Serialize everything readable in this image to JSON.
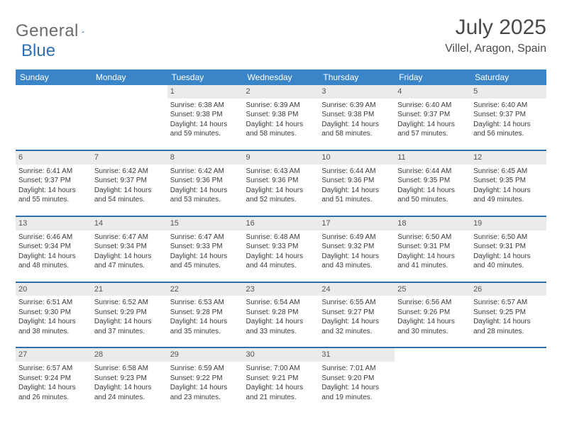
{
  "brand": {
    "name1": "General",
    "name2": "Blue"
  },
  "title": "July 2025",
  "location": "Villel, Aragon, Spain",
  "colors": {
    "header_bg": "#3a85c8",
    "row_border": "#2f6fb0",
    "daynum_bg": "#ebebeb",
    "text": "#3a3a3a"
  },
  "day_headers": [
    "Sunday",
    "Monday",
    "Tuesday",
    "Wednesday",
    "Thursday",
    "Friday",
    "Saturday"
  ],
  "weeks": [
    [
      {
        "empty": true
      },
      {
        "empty": true
      },
      {
        "day": "1",
        "sunrise": "Sunrise: 6:38 AM",
        "sunset": "Sunset: 9:38 PM",
        "daylight": "Daylight: 14 hours and 59 minutes."
      },
      {
        "day": "2",
        "sunrise": "Sunrise: 6:39 AM",
        "sunset": "Sunset: 9:38 PM",
        "daylight": "Daylight: 14 hours and 58 minutes."
      },
      {
        "day": "3",
        "sunrise": "Sunrise: 6:39 AM",
        "sunset": "Sunset: 9:38 PM",
        "daylight": "Daylight: 14 hours and 58 minutes."
      },
      {
        "day": "4",
        "sunrise": "Sunrise: 6:40 AM",
        "sunset": "Sunset: 9:37 PM",
        "daylight": "Daylight: 14 hours and 57 minutes."
      },
      {
        "day": "5",
        "sunrise": "Sunrise: 6:40 AM",
        "sunset": "Sunset: 9:37 PM",
        "daylight": "Daylight: 14 hours and 56 minutes."
      }
    ],
    [
      {
        "day": "6",
        "sunrise": "Sunrise: 6:41 AM",
        "sunset": "Sunset: 9:37 PM",
        "daylight": "Daylight: 14 hours and 55 minutes."
      },
      {
        "day": "7",
        "sunrise": "Sunrise: 6:42 AM",
        "sunset": "Sunset: 9:37 PM",
        "daylight": "Daylight: 14 hours and 54 minutes."
      },
      {
        "day": "8",
        "sunrise": "Sunrise: 6:42 AM",
        "sunset": "Sunset: 9:36 PM",
        "daylight": "Daylight: 14 hours and 53 minutes."
      },
      {
        "day": "9",
        "sunrise": "Sunrise: 6:43 AM",
        "sunset": "Sunset: 9:36 PM",
        "daylight": "Daylight: 14 hours and 52 minutes."
      },
      {
        "day": "10",
        "sunrise": "Sunrise: 6:44 AM",
        "sunset": "Sunset: 9:36 PM",
        "daylight": "Daylight: 14 hours and 51 minutes."
      },
      {
        "day": "11",
        "sunrise": "Sunrise: 6:44 AM",
        "sunset": "Sunset: 9:35 PM",
        "daylight": "Daylight: 14 hours and 50 minutes."
      },
      {
        "day": "12",
        "sunrise": "Sunrise: 6:45 AM",
        "sunset": "Sunset: 9:35 PM",
        "daylight": "Daylight: 14 hours and 49 minutes."
      }
    ],
    [
      {
        "day": "13",
        "sunrise": "Sunrise: 6:46 AM",
        "sunset": "Sunset: 9:34 PM",
        "daylight": "Daylight: 14 hours and 48 minutes."
      },
      {
        "day": "14",
        "sunrise": "Sunrise: 6:47 AM",
        "sunset": "Sunset: 9:34 PM",
        "daylight": "Daylight: 14 hours and 47 minutes."
      },
      {
        "day": "15",
        "sunrise": "Sunrise: 6:47 AM",
        "sunset": "Sunset: 9:33 PM",
        "daylight": "Daylight: 14 hours and 45 minutes."
      },
      {
        "day": "16",
        "sunrise": "Sunrise: 6:48 AM",
        "sunset": "Sunset: 9:33 PM",
        "daylight": "Daylight: 14 hours and 44 minutes."
      },
      {
        "day": "17",
        "sunrise": "Sunrise: 6:49 AM",
        "sunset": "Sunset: 9:32 PM",
        "daylight": "Daylight: 14 hours and 43 minutes."
      },
      {
        "day": "18",
        "sunrise": "Sunrise: 6:50 AM",
        "sunset": "Sunset: 9:31 PM",
        "daylight": "Daylight: 14 hours and 41 minutes."
      },
      {
        "day": "19",
        "sunrise": "Sunrise: 6:50 AM",
        "sunset": "Sunset: 9:31 PM",
        "daylight": "Daylight: 14 hours and 40 minutes."
      }
    ],
    [
      {
        "day": "20",
        "sunrise": "Sunrise: 6:51 AM",
        "sunset": "Sunset: 9:30 PM",
        "daylight": "Daylight: 14 hours and 38 minutes."
      },
      {
        "day": "21",
        "sunrise": "Sunrise: 6:52 AM",
        "sunset": "Sunset: 9:29 PM",
        "daylight": "Daylight: 14 hours and 37 minutes."
      },
      {
        "day": "22",
        "sunrise": "Sunrise: 6:53 AM",
        "sunset": "Sunset: 9:28 PM",
        "daylight": "Daylight: 14 hours and 35 minutes."
      },
      {
        "day": "23",
        "sunrise": "Sunrise: 6:54 AM",
        "sunset": "Sunset: 9:28 PM",
        "daylight": "Daylight: 14 hours and 33 minutes."
      },
      {
        "day": "24",
        "sunrise": "Sunrise: 6:55 AM",
        "sunset": "Sunset: 9:27 PM",
        "daylight": "Daylight: 14 hours and 32 minutes."
      },
      {
        "day": "25",
        "sunrise": "Sunrise: 6:56 AM",
        "sunset": "Sunset: 9:26 PM",
        "daylight": "Daylight: 14 hours and 30 minutes."
      },
      {
        "day": "26",
        "sunrise": "Sunrise: 6:57 AM",
        "sunset": "Sunset: 9:25 PM",
        "daylight": "Daylight: 14 hours and 28 minutes."
      }
    ],
    [
      {
        "day": "27",
        "sunrise": "Sunrise: 6:57 AM",
        "sunset": "Sunset: 9:24 PM",
        "daylight": "Daylight: 14 hours and 26 minutes."
      },
      {
        "day": "28",
        "sunrise": "Sunrise: 6:58 AM",
        "sunset": "Sunset: 9:23 PM",
        "daylight": "Daylight: 14 hours and 24 minutes."
      },
      {
        "day": "29",
        "sunrise": "Sunrise: 6:59 AM",
        "sunset": "Sunset: 9:22 PM",
        "daylight": "Daylight: 14 hours and 23 minutes."
      },
      {
        "day": "30",
        "sunrise": "Sunrise: 7:00 AM",
        "sunset": "Sunset: 9:21 PM",
        "daylight": "Daylight: 14 hours and 21 minutes."
      },
      {
        "day": "31",
        "sunrise": "Sunrise: 7:01 AM",
        "sunset": "Sunset: 9:20 PM",
        "daylight": "Daylight: 14 hours and 19 minutes."
      },
      {
        "empty": true
      },
      {
        "empty": true
      }
    ]
  ]
}
